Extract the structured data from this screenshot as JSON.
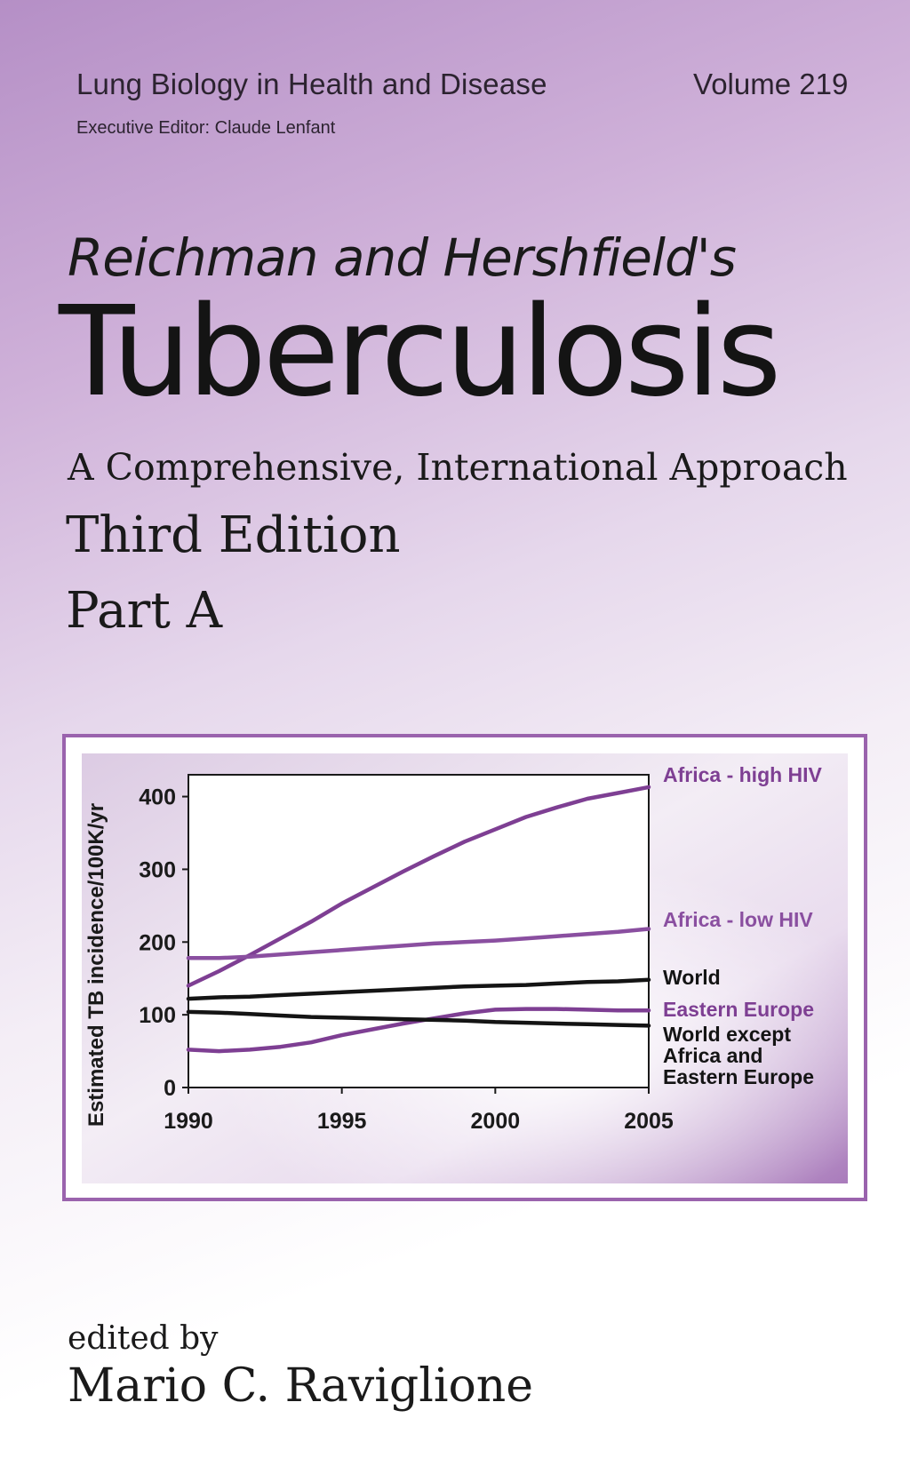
{
  "cover": {
    "series_title": "Lung Biology in Health and Disease",
    "volume": "Volume 219",
    "executive_editor": "Executive Editor: Claude Lenfant",
    "pretitle": "Reichman and Hershfield's",
    "title": "Tuberculosis",
    "subtitle": "A Comprehensive, International Approach",
    "edition": "Third Edition",
    "part": "Part A",
    "edited_by": "edited by",
    "editor": "Mario C. Raviglione"
  },
  "colors": {
    "accent_purple": "#7e3f93",
    "frame_purple": "#9a63ad",
    "black": "#141414"
  },
  "chart_data": {
    "type": "line",
    "title": "",
    "xlabel": "",
    "ylabel": "Estimated TB incidence/100K/yr",
    "xlim": [
      1990,
      2005
    ],
    "ylim": [
      0,
      430
    ],
    "x_ticks": [
      "1990",
      "1995",
      "2000",
      "2005"
    ],
    "y_ticks": [
      "0",
      "100",
      "200",
      "300",
      "400"
    ],
    "grid": false,
    "legend": "inline-right",
    "x": [
      1990,
      1991,
      1992,
      1993,
      1994,
      1995,
      1996,
      1997,
      1998,
      1999,
      2000,
      2001,
      2002,
      2003,
      2004,
      2005
    ],
    "series": [
      {
        "name": "Africa - high HIV",
        "color": "#7e3f93",
        "label_lines": [
          "Africa - high HIV"
        ],
        "values": [
          140,
          160,
          182,
          205,
          228,
          253,
          275,
          297,
          318,
          338,
          355,
          372,
          385,
          397,
          405,
          413
        ]
      },
      {
        "name": "Africa - low HIV",
        "color": "#8a4fa0",
        "label_lines": [
          "Africa - low HIV"
        ],
        "values": [
          178,
          178,
          180,
          183,
          186,
          189,
          192,
          195,
          198,
          200,
          202,
          205,
          208,
          211,
          214,
          218
        ]
      },
      {
        "name": "World",
        "color": "#141414",
        "label_lines": [
          "World"
        ],
        "values": [
          122,
          124,
          125,
          127,
          129,
          131,
          133,
          135,
          137,
          139,
          140,
          141,
          143,
          145,
          146,
          148
        ]
      },
      {
        "name": "Eastern Europe",
        "color": "#7e3f93",
        "label_lines": [
          "Eastern Europe"
        ],
        "values": [
          52,
          50,
          52,
          56,
          62,
          72,
          80,
          88,
          95,
          102,
          107,
          108,
          108,
          107,
          106,
          106
        ]
      },
      {
        "name": "World except Africa and Eastern Europe",
        "color": "#141414",
        "label_lines": [
          "World except",
          "Africa and",
          "Eastern Europe"
        ],
        "values": [
          104,
          103,
          101,
          99,
          97,
          96,
          95,
          94,
          93,
          92,
          90,
          89,
          88,
          87,
          86,
          85
        ]
      }
    ]
  }
}
